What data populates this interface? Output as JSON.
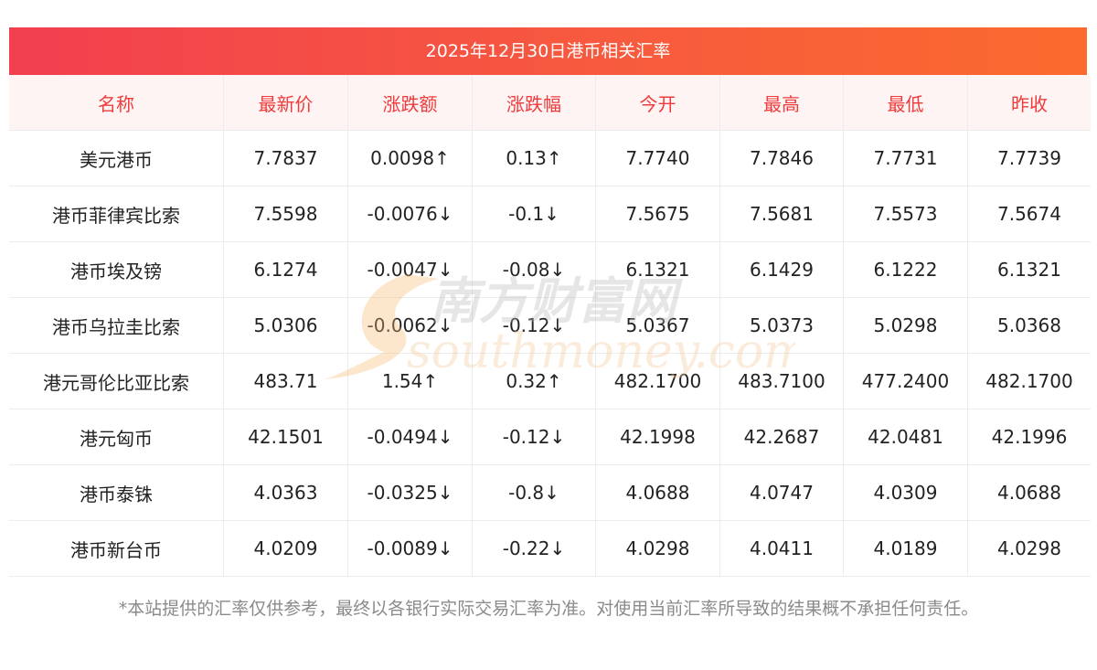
{
  "banner": {
    "title": "2025年12月30日港币相关汇率"
  },
  "table": {
    "headers": [
      "名称",
      "最新价",
      "涨跌额",
      "涨跌幅",
      "今开",
      "最高",
      "最低",
      "昨收"
    ],
    "rows": [
      {
        "name": "美元港币",
        "latest": "7.7837",
        "change": "0.0098↑",
        "pct": "0.13↑",
        "open": "7.7740",
        "high": "7.7846",
        "low": "7.7731",
        "prev": "7.7739",
        "trend": "up"
      },
      {
        "name": "港币菲律宾比索",
        "latest": "7.5598",
        "change": "-0.0076↓",
        "pct": "-0.1↓",
        "open": "7.5675",
        "high": "7.5681",
        "low": "7.5573",
        "prev": "7.5674",
        "trend": "down"
      },
      {
        "name": "港币埃及镑",
        "latest": "6.1274",
        "change": "-0.0047↓",
        "pct": "-0.08↓",
        "open": "6.1321",
        "high": "6.1429",
        "low": "6.1222",
        "prev": "6.1321",
        "trend": "down"
      },
      {
        "name": "港币乌拉圭比索",
        "latest": "5.0306",
        "change": "-0.0062↓",
        "pct": "-0.12↓",
        "open": "5.0367",
        "high": "5.0373",
        "low": "5.0298",
        "prev": "5.0368",
        "trend": "down"
      },
      {
        "name": "港元哥伦比亚比索",
        "latest": "483.71",
        "change": "1.54↑",
        "pct": "0.32↑",
        "open": "482.1700",
        "high": "483.7100",
        "low": "477.2400",
        "prev": "482.1700",
        "trend": "up"
      },
      {
        "name": "港元匈币",
        "latest": "42.1501",
        "change": "-0.0494↓",
        "pct": "-0.12↓",
        "open": "42.1998",
        "high": "42.2687",
        "low": "42.0481",
        "prev": "42.1996",
        "trend": "down"
      },
      {
        "name": "港币泰铢",
        "latest": "4.0363",
        "change": "-0.0325↓",
        "pct": "-0.8↓",
        "open": "4.0688",
        "high": "4.0747",
        "low": "4.0309",
        "prev": "4.0688",
        "trend": "down"
      },
      {
        "name": "港币新台币",
        "latest": "4.0209",
        "change": "-0.0089↓",
        "pct": "-0.22↓",
        "open": "4.0298",
        "high": "4.0411",
        "low": "4.0189",
        "prev": "4.0298",
        "trend": "down"
      }
    ]
  },
  "watermark": {
    "cn": "南方财富网",
    "en": "southmoney.com"
  },
  "footnote": "*本站提供的汇率仅供参考，最终以各银行实际交易汇率为准。对使用当前汇率所导致的结果概不承担任何责任。",
  "colors": {
    "up": "#ee1111",
    "down": "#1e8a1e",
    "header_text": "#ef3b3b",
    "banner_start": "#f23f4f",
    "banner_end": "#fb6a2e"
  }
}
